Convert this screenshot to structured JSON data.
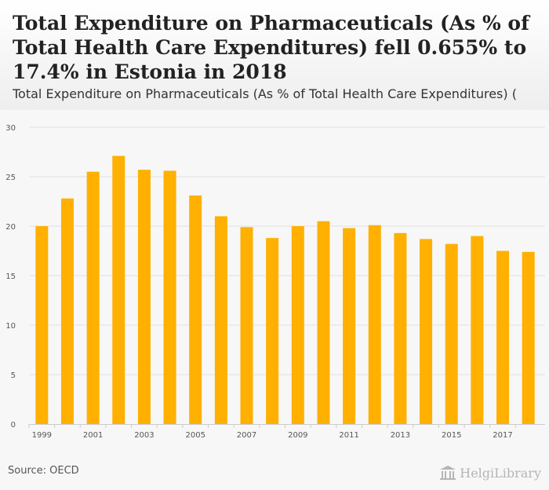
{
  "headline": "Total Expenditure on Pharmaceuticals (As % of Total Health Care Expenditures) fell 0.655% to 17.4% in Estonia in 2018",
  "subtitle": "Total Expenditure on Pharmaceuticals (As % of Total Health Care Expenditures) (",
  "source": "Source: OECD",
  "logo_text": "HelgiLibrary",
  "colors": {
    "bar": "#ffb000",
    "grid": "#e2e2e2",
    "axis_text": "#555555"
  },
  "chart_data": {
    "type": "bar",
    "categories": [
      "1999",
      "2000",
      "2001",
      "2002",
      "2003",
      "2004",
      "2005",
      "2006",
      "2007",
      "2008",
      "2009",
      "2010",
      "2011",
      "2012",
      "2013",
      "2014",
      "2015",
      "2016",
      "2017",
      "2018"
    ],
    "values": [
      20.0,
      22.8,
      25.5,
      27.1,
      25.7,
      25.6,
      23.1,
      21.0,
      19.9,
      18.8,
      20.0,
      20.5,
      19.8,
      20.1,
      19.3,
      18.7,
      18.2,
      19.0,
      17.5,
      17.4
    ],
    "x_tick_labels": [
      "1999",
      "2001",
      "2003",
      "2005",
      "2007",
      "2009",
      "2011",
      "2013",
      "2015",
      "2017"
    ],
    "y_ticks": [
      0,
      5,
      10,
      15,
      20,
      25,
      30
    ],
    "ylim": [
      0,
      30
    ],
    "grid": true,
    "legend": "none",
    "title": "",
    "xlabel": "",
    "ylabel": ""
  }
}
